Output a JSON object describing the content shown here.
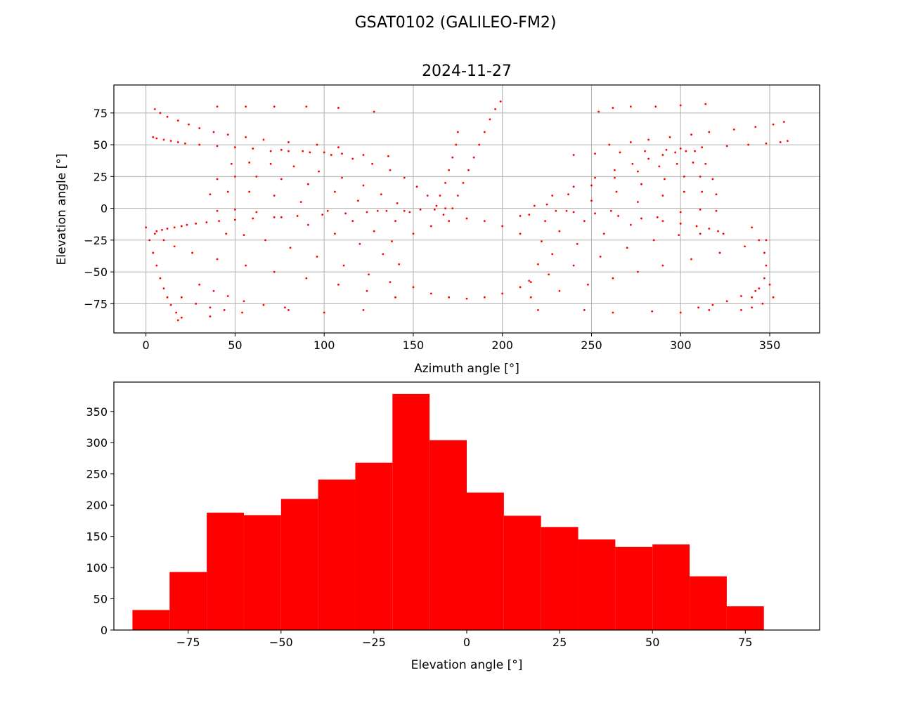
{
  "figure": {
    "suptitle": "GSAT0102 (GALILEO-FM2)"
  },
  "chart_data": [
    {
      "type": "scatter",
      "title": "2024-11-27",
      "xlabel": "Azimuth angle [°]",
      "ylabel": "Elevation angle [°]",
      "xlim": [
        -18,
        378
      ],
      "ylim": [
        -98,
        97
      ],
      "xticks": [
        0,
        50,
        100,
        150,
        200,
        250,
        300,
        350
      ],
      "yticks": [
        -75,
        -50,
        -25,
        0,
        25,
        50,
        75
      ],
      "grid": true,
      "marker_color": "#ff0000",
      "series": [
        {
          "x": [
            6,
            9,
            12,
            16,
            20,
            23,
            28,
            34,
            41,
            50,
            60,
            72,
            85,
            99,
            112,
            124,
            135,
            145,
            154,
            162,
            168,
            172,
            230,
            240,
            252,
            265,
            278,
            290,
            300,
            309,
            316,
            321,
            324,
            70,
            80,
            92,
            104,
            116,
            127,
            137,
            145,
            152,
            158,
            163,
            167,
            210,
            218,
            228,
            240,
            252,
            263,
            273,
            282,
            290,
            297,
            303,
            308,
            48,
            58,
            70,
            83,
            97,
            110,
            122,
            132,
            141,
            148,
            215,
            225,
            237,
            250,
            263,
            276,
            288,
            298,
            307,
            314,
            40,
            50,
            62,
            76,
            91,
            106,
            119,
            130,
            140,
            224,
            236,
            250,
            264,
            278,
            291,
            302,
            311,
            318,
            36,
            46,
            58,
            72,
            87,
            102,
            116,
            128,
            138,
            222,
            232,
            246,
            261,
            276,
            290,
            302,
            312,
            320,
            40,
            50,
            62,
            76,
            91,
            106,
            120,
            133,
            142,
            220,
            228,
            242,
            257,
            272,
            287,
            300,
            311,
            320,
            45,
            55,
            67,
            81,
            96,
            111,
            125,
            137,
            216,
            226,
            240,
            255,
            270,
            285,
            299,
            311,
            30,
            38,
            46,
            55,
            66,
            78,
            310,
            318,
            326,
            334,
            342,
            350,
            20,
            28,
            36,
            44,
            334,
            340,
            346,
            352,
            0,
            2,
            4,
            6,
            8,
            10,
            12,
            14,
            17,
            20,
            340,
            344,
            347,
            348,
            347,
            344,
            340,
            150,
            160,
            170,
            180,
            190,
            200,
            210,
            150,
            160,
            170,
            180,
            190,
            200,
            210,
            215,
            175,
            178,
            181,
            184,
            187,
            190,
            193,
            196,
            199,
            165,
            168,
            170,
            172,
            174,
            175,
            4,
            6,
            10,
            14,
            18,
            22,
            30,
            40,
            50,
            60,
            76,
            88,
            100,
            110,
            122,
            136,
            240,
            252,
            266,
            280,
            292,
            300,
            312,
            326,
            338,
            348,
            356,
            360,
            5,
            8,
            12,
            18,
            24,
            30,
            38,
            46,
            56,
            66,
            80,
            96,
            108,
            260,
            272,
            282,
            294,
            306,
            316,
            330,
            342,
            352,
            358,
            40,
            56,
            72,
            90,
            108,
            128,
            254,
            262,
            272,
            286,
            300,
            314,
            5,
            10,
            16,
            26,
            40,
            56,
            72,
            90,
            108,
            124,
            140,
            216,
            232,
            248,
            262,
            276,
            290,
            306,
            322,
            336,
            348,
            18,
            36,
            54,
            80,
            100,
            122,
            220,
            246,
            262,
            284,
            300,
            316
          ],
          "y": [
            -18,
            -17,
            -16,
            -15,
            -14,
            -13,
            -12,
            -11,
            -10,
            -9,
            -8,
            -7,
            -6,
            -5,
            -4,
            -3,
            -2,
            -2,
            -1,
            -1,
            0,
            0,
            -2,
            -3,
            -4,
            -6,
            -8,
            -10,
            -12,
            -14,
            -16,
            -18,
            -20,
            45,
            45,
            44,
            42,
            39,
            35,
            30,
            24,
            17,
            10,
            2,
            -5,
            -6,
            2,
            10,
            17,
            24,
            30,
            35,
            39,
            42,
            44,
            45,
            45,
            35,
            36,
            35,
            33,
            29,
            24,
            18,
            11,
            4,
            -3,
            -5,
            3,
            11,
            18,
            24,
            29,
            33,
            35,
            36,
            35,
            23,
            25,
            25,
            23,
            19,
            13,
            6,
            -2,
            -10,
            -10,
            -2,
            6,
            13,
            19,
            23,
            25,
            25,
            23,
            11,
            13,
            13,
            10,
            5,
            -2,
            -10,
            -18,
            -26,
            -26,
            -18,
            -10,
            -2,
            5,
            10,
            13,
            13,
            11,
            -2,
            -1,
            -3,
            -7,
            -13,
            -20,
            -28,
            -36,
            -44,
            -44,
            -36,
            -28,
            -20,
            -13,
            -7,
            -3,
            -1,
            -2,
            -20,
            -21,
            -25,
            -31,
            -38,
            -45,
            -52,
            -58,
            -58,
            -52,
            -45,
            -38,
            -31,
            -25,
            -21,
            -20,
            -60,
            -65,
            -69,
            -73,
            -76,
            -78,
            -78,
            -76,
            -73,
            -69,
            -65,
            -60,
            -70,
            -75,
            -78,
            -80,
            -80,
            -78,
            -75,
            -70,
            -15,
            -25,
            -35,
            -45,
            -55,
            -63,
            -70,
            -76,
            -82,
            -86,
            -15,
            -25,
            -35,
            -45,
            -55,
            -63,
            -70,
            -20,
            -14,
            -10,
            -8,
            -10,
            -14,
            -20,
            -62,
            -67,
            -70,
            -71,
            -70,
            -67,
            -62,
            -57,
            10,
            20,
            30,
            40,
            50,
            60,
            70,
            78,
            84,
            10,
            20,
            30,
            40,
            50,
            60,
            56,
            55,
            54,
            53,
            52,
            51,
            50,
            49,
            48,
            47,
            46,
            45,
            44,
            43,
            42,
            41,
            42,
            43,
            44,
            45,
            46,
            47,
            48,
            49,
            50,
            51,
            52,
            53,
            78,
            75,
            72,
            69,
            66,
            63,
            60,
            58,
            56,
            54,
            52,
            50,
            48,
            50,
            52,
            54,
            56,
            58,
            60,
            62,
            64,
            66,
            68,
            80,
            80,
            80,
            80,
            79,
            76,
            76,
            79,
            80,
            80,
            81,
            82,
            -20,
            -25,
            -30,
            -35,
            -40,
            -45,
            -50,
            -55,
            -60,
            -65,
            -70,
            -70,
            -65,
            -60,
            -55,
            -50,
            -45,
            -40,
            -35,
            -30,
            -25,
            -88,
            -85,
            -82,
            -80,
            -82,
            -80,
            -80,
            -80,
            -82,
            -81,
            -82,
            -80
          ]
        }
      ]
    },
    {
      "type": "bar",
      "xlabel": "Elevation angle [°]",
      "ylabel": "",
      "xlim": [
        -95,
        95
      ],
      "ylim": [
        0,
        397
      ],
      "xticks": [
        -75,
        -50,
        -25,
        0,
        25,
        50,
        75
      ],
      "yticks": [
        0,
        50,
        100,
        150,
        200,
        250,
        300,
        350
      ],
      "grid": false,
      "bar_color": "#ff0000",
      "bin_edges": [
        -90,
        -80,
        -70,
        -60,
        -50,
        -40,
        -30,
        -20,
        -10,
        0,
        10,
        20,
        30,
        40,
        50,
        60,
        70,
        80
      ],
      "values": [
        32,
        93,
        188,
        184,
        210,
        241,
        268,
        378,
        304,
        220,
        183,
        165,
        145,
        133,
        137,
        86,
        38
      ]
    }
  ]
}
